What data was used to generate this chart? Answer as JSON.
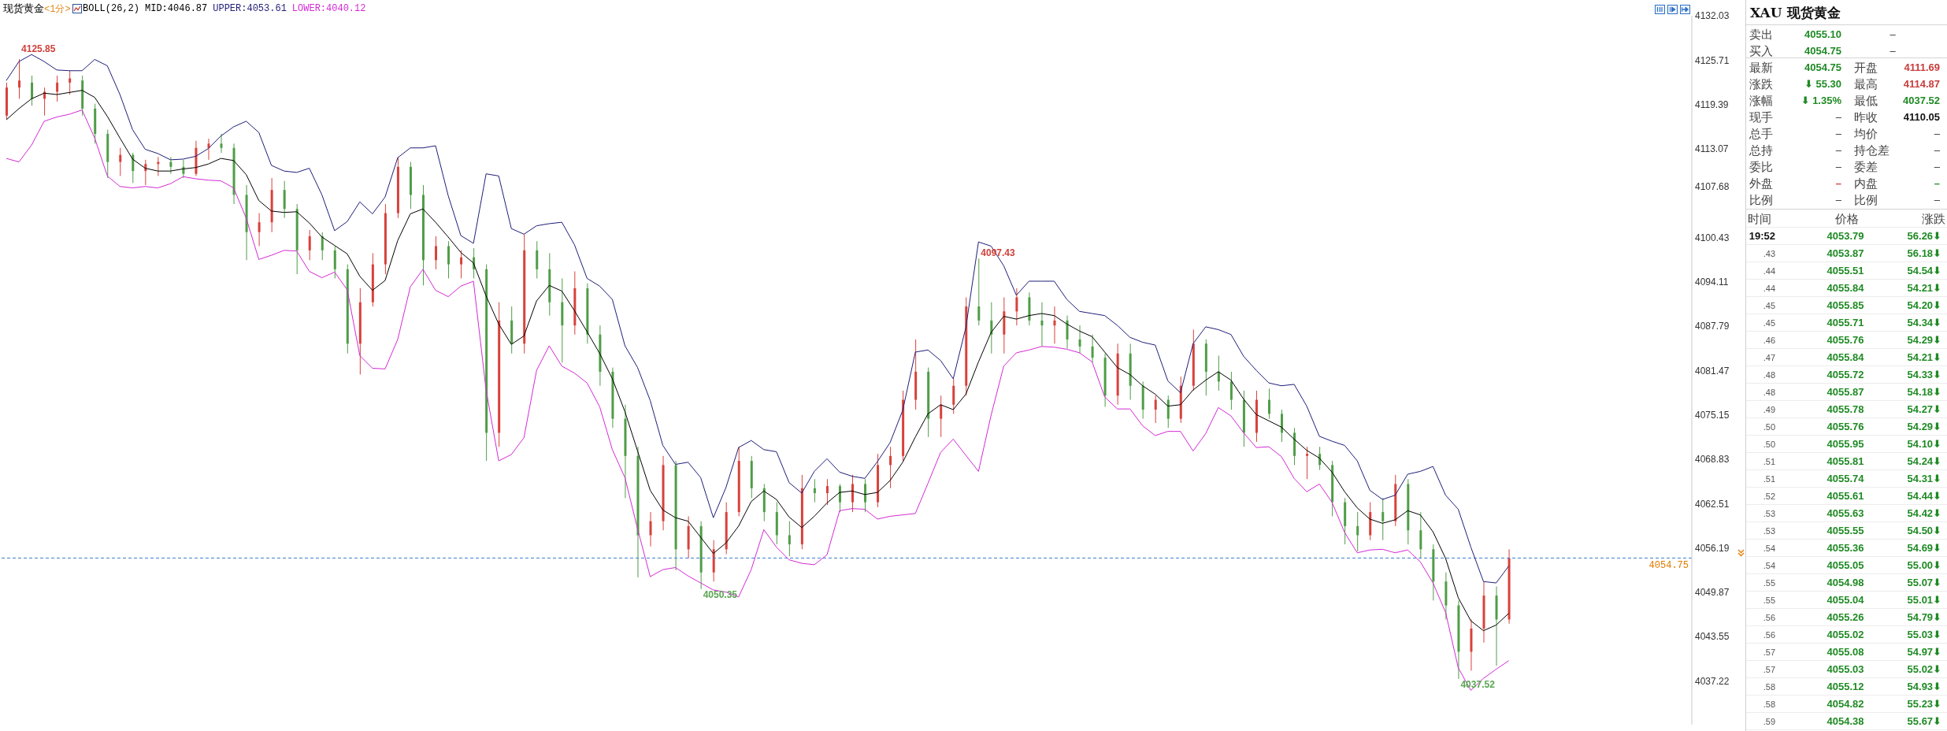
{
  "chart_data": [
    {
      "type": "candlestick",
      "title": "现货黄金",
      "subtitle": "<1分>",
      "legend_title": "BOLL(26,2)",
      "legend": "top left",
      "tick_labels": "y",
      "categories": [
        null,
        null,
        null,
        null,
        null,
        null,
        null,
        null,
        null,
        null,
        null,
        null,
        null,
        null,
        null,
        null,
        null,
        null,
        null,
        null,
        null,
        null,
        null,
        null,
        null,
        null,
        null,
        null,
        null,
        null,
        null,
        null,
        null,
        null,
        null,
        null,
        null,
        null,
        null,
        null,
        null,
        null,
        null,
        null,
        null,
        null,
        null,
        null,
        null,
        null,
        null,
        null,
        null,
        null,
        null,
        null,
        null,
        null,
        null,
        null,
        null,
        null,
        null,
        null,
        null,
        null,
        null,
        null,
        null,
        null,
        null,
        null,
        null,
        null,
        null,
        null,
        null,
        null,
        null,
        null,
        null,
        null,
        null,
        null,
        null,
        null,
        null,
        null,
        null,
        null,
        null,
        null,
        null,
        null,
        null,
        null,
        null,
        null,
        null,
        null,
        null,
        null,
        null,
        null,
        null,
        null,
        null,
        null,
        null,
        null,
        null,
        null,
        null,
        null,
        null,
        null,
        null,
        null,
        null,
        null,
        null,
        null,
        null,
        null,
        null,
        null,
        null,
        null,
        null,
        null,
        null,
        null,
        null,
        null
      ],
      "ohlc": [
        [
          4117.8,
          4122.5,
          4117.3,
          4121.8
        ],
        [
          4121.8,
          4125.85,
          4120.2,
          4122.8
        ],
        [
          4122.5,
          4123.5,
          4119.2,
          4120.2
        ],
        [
          4120.2,
          4121.8,
          4117.8,
          4121.2
        ],
        [
          4121.2,
          4123.5,
          4119.8,
          4122.5
        ],
        [
          4122.5,
          4124.2,
          4120.8,
          4123.1
        ],
        [
          4122.8,
          4123.5,
          4117.8,
          4118.8
        ],
        [
          4118.8,
          4119.5,
          4113.8,
          4115.2
        ],
        [
          4115.2,
          4115.8,
          4108.9,
          4111.2
        ],
        [
          4111.2,
          4113.2,
          4109.2,
          4112.2
        ],
        [
          4112.2,
          4112.5,
          4108.2,
          4109.9
        ],
        [
          4109.9,
          4111.5,
          4107.9,
          4110.9
        ],
        [
          4110.9,
          4111.9,
          4109.2,
          4111.2
        ],
        [
          4111.2,
          4111.9,
          4109.5,
          4110.5
        ],
        [
          4110.5,
          4111.5,
          4108.9,
          4109.5
        ],
        [
          4109.5,
          4114.2,
          4109.2,
          4113.2
        ],
        [
          4113.2,
          4114.5,
          4111.5,
          4113.8
        ],
        [
          4113.8,
          4115.2,
          4112.5,
          4113.2
        ],
        [
          4113.2,
          4113.8,
          4105.2,
          4106.5
        ],
        [
          4106.5,
          4107.9,
          4097.2,
          4101.2
        ],
        [
          4101.2,
          4103.9,
          4099.2,
          4102.6
        ],
        [
          4102.6,
          4108.9,
          4101.2,
          4107.2
        ],
        [
          4107.2,
          4108.5,
          4103.2,
          4104.5
        ],
        [
          4104.5,
          4105.2,
          4095.2,
          4098.6
        ],
        [
          4098.6,
          4101.5,
          4097.2,
          4100.6
        ],
        [
          4100.6,
          4101.2,
          4097.2,
          4098.6
        ],
        [
          4098.6,
          4099.2,
          4094.6,
          4095.9
        ],
        [
          4095.9,
          4096.6,
          4083.9,
          4085.3
        ],
        [
          4085.3,
          4093.2,
          4080.9,
          4091.2
        ],
        [
          4091.2,
          4098.2,
          4090.6,
          4096.6
        ],
        [
          4096.6,
          4105.2,
          4095.2,
          4103.9
        ],
        [
          4103.9,
          4111.9,
          4103.2,
          4110.5
        ],
        [
          4110.5,
          4111.2,
          4104.5,
          4106.5
        ],
        [
          4106.5,
          4107.9,
          4093.6,
          4097.2
        ],
        [
          4097.2,
          4100.6,
          4095.9,
          4099.2
        ],
        [
          4099.2,
          4099.9,
          4094.6,
          4096.6
        ],
        [
          4096.6,
          4098.6,
          4094.6,
          4097.6
        ],
        [
          4097.6,
          4098.9,
          4094.6,
          4095.9
        ],
        [
          4095.9,
          4096.6,
          4068.6,
          4072.6
        ],
        [
          4072.6,
          4091.2,
          4070.6,
          4088.6
        ],
        [
          4088.6,
          4090.6,
          4083.9,
          4085.3
        ],
        [
          4085.3,
          4100.9,
          4083.9,
          4098.6
        ],
        [
          4098.6,
          4099.9,
          4094.6,
          4095.9
        ],
        [
          4095.9,
          4098.2,
          4089.3,
          4091.2
        ],
        [
          4091.2,
          4094.6,
          4082.6,
          4087.9
        ],
        [
          4087.9,
          4095.6,
          4086.6,
          4093.2
        ],
        [
          4093.2,
          4093.9,
          4085.3,
          4086.6
        ],
        [
          4086.6,
          4087.9,
          4079.3,
          4081.3
        ],
        [
          4081.3,
          4081.9,
          4073.3,
          4074.6
        ],
        [
          4074.6,
          4076.6,
          4063.3,
          4069.3
        ],
        [
          4069.3,
          4070.6,
          4052.0,
          4058.0
        ],
        [
          4058.0,
          4061.3,
          4056.4,
          4060.0
        ],
        [
          4060.0,
          4069.3,
          4058.7,
          4068.0
        ],
        [
          4068.0,
          4068.6,
          4053.0,
          4056.0
        ],
        [
          4056.0,
          4060.7,
          4054.7,
          4059.3
        ],
        [
          4059.3,
          4060.0,
          4050.35,
          4052.7
        ],
        [
          4052.7,
          4057.3,
          4051.4,
          4056.0
        ],
        [
          4056.0,
          4062.7,
          4055.3,
          4061.3
        ],
        [
          4061.3,
          4070.6,
          4060.7,
          4068.6
        ],
        [
          4068.6,
          4069.3,
          4063.3,
          4064.7
        ],
        [
          4064.7,
          4065.3,
          4060.0,
          4061.3
        ],
        [
          4061.3,
          4062.7,
          4056.7,
          4058.0
        ],
        [
          4058.0,
          4060.0,
          4055.0,
          4056.7
        ],
        [
          4056.7,
          4066.6,
          4056.0,
          4064.7
        ],
        [
          4064.7,
          4066.0,
          4062.7,
          4064.0
        ],
        [
          4064.0,
          4066.0,
          4062.3,
          4065.0
        ],
        [
          4065.0,
          4065.3,
          4061.3,
          4062.7
        ],
        [
          4062.7,
          4066.6,
          4061.3,
          4065.3
        ],
        [
          4065.3,
          4066.0,
          4061.3,
          4062.7
        ],
        [
          4062.7,
          4069.6,
          4062.0,
          4068.0
        ],
        [
          4068.0,
          4070.6,
          4064.7,
          4069.3
        ],
        [
          4069.3,
          4078.6,
          4068.6,
          4077.3
        ],
        [
          4077.3,
          4085.9,
          4075.9,
          4081.3
        ],
        [
          4081.3,
          4081.9,
          4072.0,
          4074.6
        ],
        [
          4074.6,
          4077.9,
          4072.0,
          4076.6
        ],
        [
          4076.6,
          4080.3,
          4075.3,
          4079.3
        ],
        [
          4079.3,
          4091.9,
          4077.9,
          4090.6
        ],
        [
          4090.6,
          4097.43,
          4087.9,
          4088.6
        ],
        [
          4088.6,
          4091.2,
          4083.9,
          4086.6
        ],
        [
          4086.6,
          4091.9,
          4083.9,
          4089.9
        ],
        [
          4089.9,
          4093.2,
          4087.9,
          4091.9
        ],
        [
          4091.9,
          4092.6,
          4087.9,
          4088.6
        ],
        [
          4088.6,
          4091.2,
          4084.9,
          4087.9
        ],
        [
          4087.9,
          4090.6,
          4085.3,
          4088.6
        ],
        [
          4088.6,
          4089.3,
          4084.6,
          4085.9
        ],
        [
          4085.9,
          4087.9,
          4083.9,
          4084.9
        ],
        [
          4084.9,
          4086.6,
          4082.6,
          4083.3
        ],
        [
          4083.3,
          4083.9,
          4076.3,
          4077.9
        ],
        [
          4077.9,
          4085.3,
          4076.6,
          4083.9
        ],
        [
          4083.9,
          4085.3,
          4077.3,
          4079.3
        ],
        [
          4079.3,
          4079.9,
          4074.6,
          4075.9
        ],
        [
          4075.9,
          4077.9,
          4074.0,
          4077.3
        ],
        [
          4077.3,
          4077.9,
          4073.3,
          4074.6
        ],
        [
          4074.6,
          4080.6,
          4074.0,
          4079.3
        ],
        [
          4079.3,
          4087.3,
          4078.6,
          4085.3
        ],
        [
          4085.3,
          4085.9,
          4077.9,
          4081.3
        ],
        [
          4081.3,
          4083.6,
          4078.6,
          4079.9
        ],
        [
          4079.9,
          4081.3,
          4075.9,
          4077.3
        ],
        [
          4077.3,
          4078.6,
          4070.6,
          4072.6
        ],
        [
          4072.6,
          4078.6,
          4071.3,
          4077.3
        ],
        [
          4077.3,
          4078.9,
          4074.6,
          4075.3
        ],
        [
          4075.3,
          4075.9,
          4071.3,
          4072.6
        ],
        [
          4072.6,
          4073.3,
          4068.0,
          4069.3
        ],
        [
          4069.3,
          4070.6,
          4066.0,
          4069.6
        ],
        [
          4069.6,
          4070.6,
          4067.3,
          4068.0
        ],
        [
          4068.0,
          4068.6,
          4060.7,
          4062.7
        ],
        [
          4062.7,
          4063.3,
          4056.7,
          4059.3
        ],
        [
          4059.3,
          4061.3,
          4055.7,
          4058.0
        ],
        [
          4058.0,
          4062.7,
          4057.3,
          4061.3
        ],
        [
          4061.3,
          4063.3,
          4057.3,
          4060.0
        ],
        [
          4060.0,
          4066.6,
          4059.3,
          4065.3
        ],
        [
          4065.3,
          4066.0,
          4056.7,
          4058.7
        ],
        [
          4058.7,
          4061.3,
          4054.7,
          4056.0
        ],
        [
          4056.0,
          4056.7,
          4048.7,
          4051.4
        ],
        [
          4051.4,
          4052.7,
          4046.0,
          4048.0
        ],
        [
          4048.0,
          4048.7,
          4037.52,
          4041.4
        ],
        [
          4041.4,
          4046.0,
          4038.7,
          4044.7
        ],
        [
          4044.7,
          4051.4,
          4042.7,
          4049.4
        ],
        [
          4049.4,
          4050.7,
          4039.4,
          4046.0
        ],
        [
          4046.0,
          4056.0,
          4045.4,
          4054.75
        ],
        null,
        null,
        null,
        null,
        null,
        null,
        null,
        null,
        null,
        null,
        null,
        null,
        null,
        null
      ],
      "series": [
        {
          "name": "MID:4046.87",
          "type": "line",
          "color": "#000000",
          "values": [
            4117.2,
            4118.8,
            4120.2,
            4121.0,
            4120.8,
            4121.1,
            4121.4,
            4120.4,
            4117.7,
            4114.6,
            4111.6,
            4110.3,
            4109.9,
            4109.9,
            4110.2,
            4110.4,
            4110.9,
            4111.7,
            4111.4,
            4109.4,
            4105.7,
            4104.2,
            4104.0,
            4104.1,
            4102.5,
            4100.5,
            4099.3,
            4098.1,
            4094.9,
            4092.9,
            4094.3,
            4100.0,
            4103.8,
            4104.5,
            4102.6,
            4100.5,
            4098.3,
            4096.8,
            4092.1,
            4088.1,
            4085.2,
            4086.4,
            4091.4,
            4093.6,
            4092.8,
            4090.0,
            4087.0,
            4083.9,
            4080.3,
            4075.6,
            4070.0,
            4064.4,
            4061.6,
            4060.5,
            4060.0,
            4057.7,
            4055.4,
            4056.9,
            4059.3,
            4062.8,
            4064.3,
            4063.1,
            4060.6,
            4059.1,
            4060.7,
            4062.6,
            4064.1,
            4064.3,
            4063.8,
            4064.1,
            4065.8,
            4068.4,
            4072.0,
            4075.3,
            4076.6,
            4075.9,
            4078.1,
            4082.7,
            4086.9,
            4089.2,
            4088.8,
            4089.3,
            4089.6,
            4089.3,
            4088.1,
            4087.1,
            4086.3,
            4084.1,
            4081.9,
            4080.9,
            4079.3,
            4078.1,
            4076.4,
            4076.6,
            4078.7,
            4080.1,
            4081.3,
            4080.1,
            4077.4,
            4075.2,
            4074.3,
            4073.4,
            4071.7,
            4070.1,
            4069.0,
            4067.0,
            4064.2,
            4061.9,
            4060.3,
            4059.7,
            4060.2,
            4061.5,
            4060.9,
            4058.5,
            4054.7,
            4049.1,
            4045.8,
            4044.4,
            4045.2,
            4046.87,
            null,
            null,
            null,
            null,
            null,
            null,
            null,
            null,
            null,
            null,
            null,
            null,
            null,
            null
          ]
        },
        {
          "name": "UPPER:4053.61",
          "type": "line",
          "color": "#1e1e78",
          "values": [
            4122.8,
            4125.5,
            4126.5,
            4125.5,
            4124.3,
            4124.2,
            4124.2,
            4125.8,
            4124.9,
            4120.8,
            4115.8,
            4113.0,
            4112.4,
            4111.5,
            4111.6,
            4112.0,
            4113.1,
            4114.9,
            4116.2,
            4117.0,
            4115.4,
            4110.7,
            4109.9,
            4109.7,
            4110.3,
            4106.5,
            4101.4,
            4102.7,
            4105.5,
            4103.8,
            4106.2,
            4111.8,
            4113.2,
            4113.2,
            4113.5,
            4106.4,
            4100.7,
            4099.6,
            4109.5,
            4109.2,
            4101.7,
            4100.9,
            4102.1,
            4102.4,
            4102.6,
            4099.4,
            4094.6,
            4093.5,
            4091.6,
            4085.0,
            4081.9,
            4077.2,
            4070.8,
            4068.1,
            4068.4,
            4066.2,
            4060.5,
            4064.8,
            4070.5,
            4071.5,
            4070.2,
            4069.9,
            4065.5,
            4064.0,
            4067.1,
            4068.9,
            4067.0,
            4066.4,
            4066.1,
            4068.5,
            4071.2,
            4075.8,
            4084.1,
            4084.4,
            4082.9,
            4080.3,
            4087.6,
            4099.8,
            4099.2,
            4096.4,
            4092.2,
            4094.2,
            4094.2,
            4094.2,
            4091.6,
            4089.9,
            4089.6,
            4089.3,
            4087.9,
            4086.2,
            4085.5,
            4085.1,
            4080.0,
            4078.3,
            4085.3,
            4087.7,
            4087.3,
            4086.6,
            4083.5,
            4081.5,
            4079.7,
            4079.3,
            4079.5,
            4076.4,
            4072.1,
            4071.4,
            4070.8,
            4068.6,
            4064.4,
            4063.1,
            4063.7,
            4066.7,
            4067.1,
            4067.8,
            4063.7,
            4061.7,
            4056.3,
            4051.4,
            4051.2,
            4053.61,
            null,
            null,
            null,
            null,
            null,
            null,
            null,
            null,
            null,
            null,
            null,
            null,
            null,
            null
          ]
        },
        {
          "name": "LOWER:4040.12",
          "type": "line",
          "color": "#d42ad4",
          "values": [
            4111.7,
            4111.2,
            4113.6,
            4117.0,
            4117.6,
            4118.0,
            4118.6,
            4114.6,
            4109.2,
            4107.7,
            4107.5,
            4107.7,
            4107.5,
            4108.1,
            4109.1,
            4108.8,
            4108.6,
            4108.5,
            4107.5,
            4103.2,
            4097.3,
            4097.9,
            4098.6,
            4098.5,
            4095.6,
            4094.7,
            4095.5,
            4093.0,
            4083.6,
            4081.8,
            4081.7,
            4085.9,
            4093.4,
            4095.9,
            4092.9,
            4092.0,
            4093.5,
            4094.2,
            4078.7,
            4068.6,
            4069.5,
            4071.9,
            4081.5,
            4085.0,
            4082.1,
            4081.1,
            4079.7,
            4076.3,
            4070.2,
            4066.2,
            4058.9,
            4052.1,
            4053.1,
            4053.4,
            4052.2,
            4051.2,
            4050.2,
            4049.9,
            4049.2,
            4053.1,
            4058.8,
            4056.3,
            4054.5,
            4054.0,
            4053.8,
            4055.2,
            4061.5,
            4061.8,
            4061.7,
            4060.3,
            4060.7,
            4060.9,
            4061.1,
            4065.4,
            4069.8,
            4071.7,
            4069.4,
            4067.1,
            4075.1,
            4082.1,
            4084.0,
            4084.4,
            4084.9,
            4084.8,
            4084.5,
            4084.0,
            4082.7,
            4077.7,
            4076.0,
            4076.0,
            4073.6,
            4072.2,
            4072.8,
            4072.8,
            4070.0,
            4072.5,
            4076.2,
            4075.0,
            4072.6,
            4070.5,
            4070.6,
            4069.2,
            4066.1,
            4064.2,
            4065.3,
            4062.7,
            4058.4,
            4055.5,
            4055.9,
            4056.0,
            4055.5,
            4055.9,
            4054.2,
            4051.2,
            4047.0,
            4039.1,
            4035.9,
            4037.6,
            4038.9,
            4040.12,
            null,
            null,
            null,
            null,
            null,
            null,
            null,
            null,
            null,
            null,
            null,
            null,
            null,
            null
          ]
        }
      ],
      "ylim": [
        4031,
        4132.03
      ],
      "yticks": [
        4037.22,
        4043.55,
        4049.87,
        4056.19,
        4062.51,
        4068.83,
        4075.15,
        4081.47,
        4087.79,
        4094.11,
        4100.43,
        4107.68,
        4113.07,
        4119.39,
        4125.71,
        4132.03
      ],
      "ref_lines": [
        {
          "axis": "y",
          "value": 4054.75,
          "label": "4054.75",
          "color": "#3c7fd0",
          "line_style": "dashed"
        }
      ],
      "annotations": [
        {
          "text": "4125.85",
          "y": 4125.85
        },
        {
          "text": "4097.43",
          "y": 4097.43
        },
        {
          "text": "4050.35",
          "y": 4050.35
        },
        {
          "text": "4037.52",
          "y": 4037.52
        }
      ]
    },
    {
      "type": "other",
      "title": "XAU 现货黄金",
      "annotations": [
        "卖出",
        "4055.10",
        "–",
        "买入",
        "4054.75",
        "–"
      ]
    },
    {
      "type": "other",
      "annotations": [
        "最新",
        "4054.75",
        "开盘",
        "4111.69",
        "涨跌",
        "⬇ 55.30",
        "最高",
        "4114.87",
        "涨幅",
        "⬇ 1.35%",
        "最低",
        "4037.52",
        "现手",
        "–",
        "昨收",
        "4110.05",
        "总手",
        "–",
        "均价",
        "–",
        "总持",
        "–",
        "持仓差",
        "–",
        "委比",
        "–",
        "委差",
        "–",
        "外盘",
        "–",
        "内盘",
        "–",
        "比例",
        "–",
        "比例",
        "–"
      ]
    },
    {
      "type": "other",
      "annotations": [
        "时间",
        "价格",
        "涨跌",
        "19:52",
        "4053.79",
        "56.26⬇",
        ".43",
        "4053.87",
        "56.18⬇",
        ".44",
        "4055.51",
        "54.54⬇",
        ".44",
        "4055.84",
        "54.21⬇",
        ".45",
        "4055.85",
        "54.20⬇",
        ".45",
        "4055.71",
        "54.34⬇",
        ".46",
        "4055.76",
        "54.29⬇",
        ".47",
        "4055.84",
        "54.21⬇",
        ".48",
        "4055.72",
        "54.33⬇",
        ".48",
        "4055.87",
        "54.18⬇",
        ".49",
        "4055.78",
        "54.27⬇",
        ".50",
        "4055.76",
        "54.29⬇",
        ".50",
        "4055.95",
        "54.10⬇",
        ".51",
        "4055.81",
        "54.24⬇",
        ".51",
        "4055.74",
        "54.31⬇",
        ".52",
        "4055.61",
        "54.44⬇",
        ".53",
        "4055.63",
        "54.42⬇",
        ".53",
        "4055.55",
        "54.50⬇",
        ".54",
        "4055.36",
        "54.69⬇",
        ".54",
        "4055.05",
        "55.00⬇",
        ".55",
        "4054.98",
        "55.07⬇",
        ".55",
        "4055.04",
        "55.01⬇",
        ".56",
        "4055.26",
        "54.79⬇",
        ".56",
        "4055.02",
        "55.03⬇",
        ".57",
        "4055.08",
        "54.97⬇",
        ".57",
        "4055.03",
        "55.02⬇",
        ".58",
        "4055.12",
        "54.93⬇",
        ".58",
        "4054.82",
        "55.23⬇",
        ".59",
        "4054.38",
        "55.67⬇"
      ]
    }
  ]
}
